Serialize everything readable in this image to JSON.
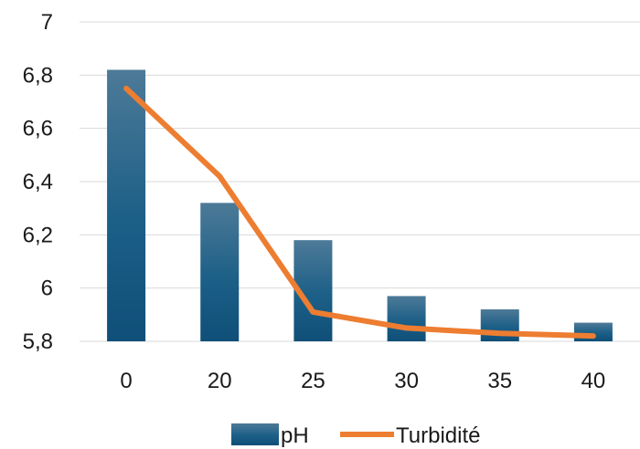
{
  "chart_data": {
    "type": "bar",
    "title": "",
    "xlabel": "",
    "ylabel": "",
    "categories": [
      "0",
      "20",
      "25",
      "30",
      "35",
      "40"
    ],
    "ylim": [
      5.8,
      7
    ],
    "yticks": [
      "5,8",
      "6",
      "6,2",
      "6,4",
      "6,6",
      "6,8",
      "7"
    ],
    "ytick_values": [
      5.8,
      6.0,
      6.2,
      6.4,
      6.6,
      6.8,
      7.0
    ],
    "grid": true,
    "legend_position": "bottom",
    "series": [
      {
        "name": "pH",
        "type": "bar",
        "color": "#1f5b80",
        "values": [
          6.82,
          6.32,
          6.18,
          5.97,
          5.92,
          5.87
        ]
      },
      {
        "name": "Turbidité",
        "type": "line",
        "color": "#ed7d31",
        "values": [
          6.75,
          6.42,
          5.91,
          5.85,
          5.83,
          5.82
        ]
      }
    ]
  }
}
